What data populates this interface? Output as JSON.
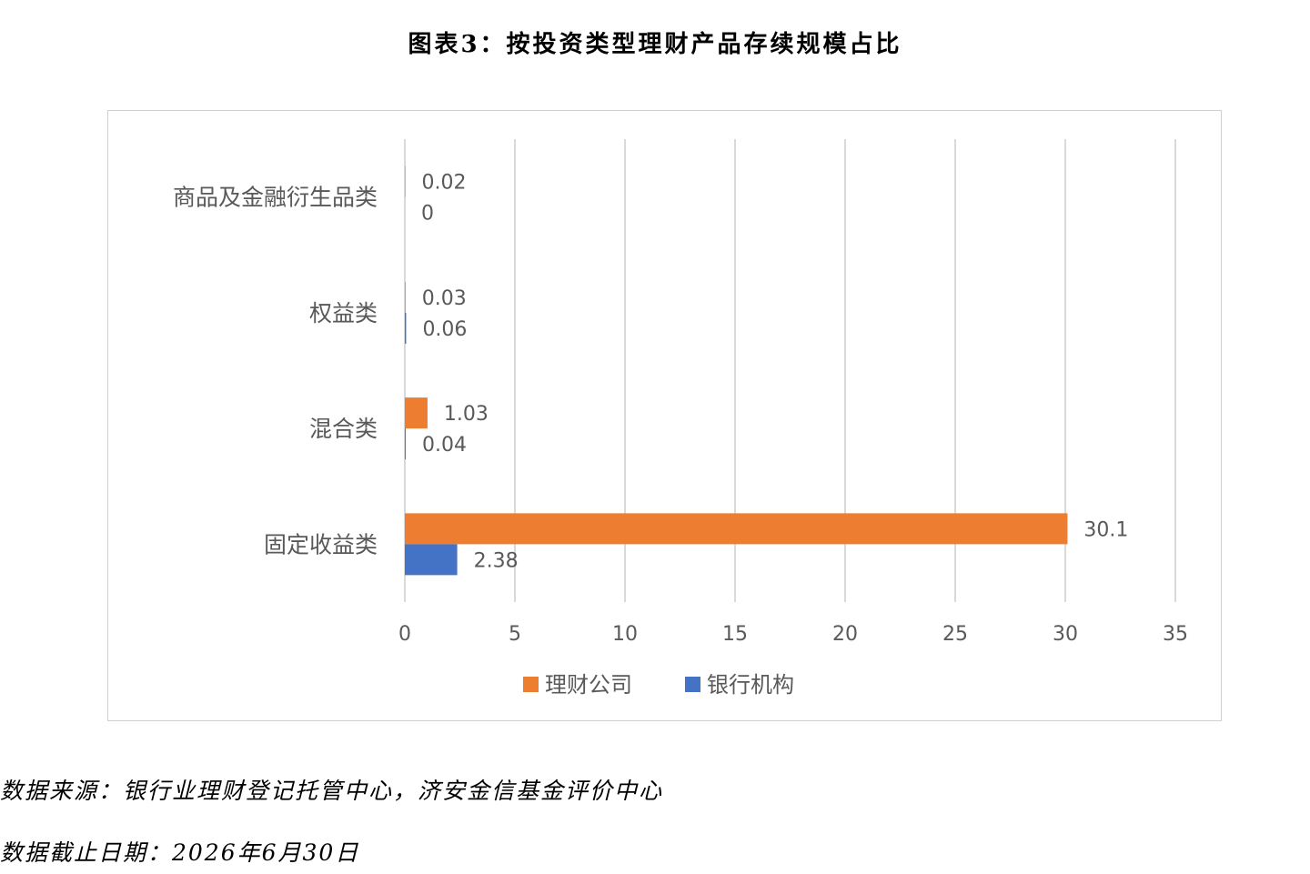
{
  "title": "图表3：按投资类型理财产品存续规模占比",
  "notes": {
    "source": "数据来源：银行业理财登记托管中心，济安金信基金评价中心",
    "date": "数据截止日期：2026年6月30日"
  },
  "chart_data": {
    "type": "bar",
    "orientation": "horizontal",
    "categories": [
      "商品及金融衍生品类",
      "权益类",
      "混合类",
      "固定收益类"
    ],
    "series": [
      {
        "name": "理财公司",
        "color": "#ED7D31",
        "values": [
          0.02,
          0.03,
          1.03,
          30.1
        ],
        "labels": [
          "0.02",
          "0.03",
          "1.03",
          "30.1"
        ]
      },
      {
        "name": "银行机构",
        "color": "#4472C4",
        "values": [
          0,
          0.06,
          0.04,
          2.38
        ],
        "labels": [
          "0",
          "0.06",
          "0.04",
          "2.38"
        ]
      }
    ],
    "xlim": [
      0,
      35
    ],
    "xticks": [
      0,
      5,
      10,
      15,
      20,
      25,
      30,
      35
    ],
    "grid": true,
    "legend_position": "bottom"
  }
}
